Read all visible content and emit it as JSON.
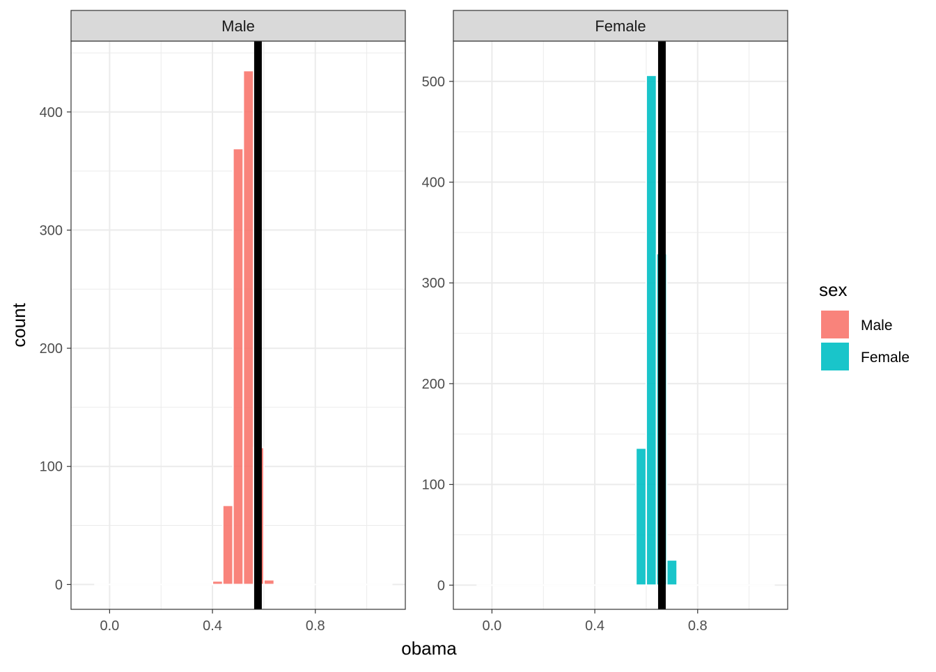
{
  "chart_data": {
    "type": "bar",
    "xlabel": "obama",
    "ylabel": "count",
    "x_ticks": [
      "0.0",
      "0.4",
      "0.8"
    ],
    "x_tick_values": [
      0.0,
      0.4,
      0.8
    ],
    "xlim": [
      -0.15,
      1.15
    ],
    "legend": {
      "title": "sex",
      "placement": "right",
      "items": [
        {
          "label": "Male",
          "color": "#F8766D"
        },
        {
          "label": "Female",
          "color": "#00BFC4"
        }
      ]
    },
    "bin_width": 0.04,
    "facets": [
      {
        "strip_label": "Male",
        "color": "#F8766D",
        "y_ticks": [
          "0",
          "100",
          "200",
          "300",
          "400"
        ],
        "y_tick_values": [
          0,
          100,
          200,
          300,
          400
        ],
        "ylim": [
          -21,
          460
        ],
        "bins": [
          {
            "x": 0.42,
            "count": 3
          },
          {
            "x": 0.46,
            "count": 67
          },
          {
            "x": 0.5,
            "count": 369
          },
          {
            "x": 0.54,
            "count": 435
          },
          {
            "x": 0.58,
            "count": 116
          },
          {
            "x": 0.62,
            "count": 4
          }
        ],
        "vline": 0.577
      },
      {
        "strip_label": "Female",
        "color": "#00BFC4",
        "y_ticks": [
          "0",
          "100",
          "200",
          "300",
          "400",
          "500"
        ],
        "y_tick_values": [
          0,
          100,
          200,
          300,
          400,
          500
        ],
        "ylim": [
          -24,
          540
        ],
        "bins": [
          {
            "x": 0.58,
            "count": 136
          },
          {
            "x": 0.62,
            "count": 506
          },
          {
            "x": 0.66,
            "count": 329
          },
          {
            "x": 0.7,
            "count": 25
          }
        ],
        "vline": 0.661
      }
    ]
  }
}
